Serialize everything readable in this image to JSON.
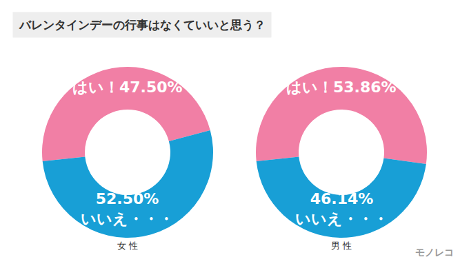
{
  "chart_data": {
    "type": "pie",
    "title": "バレンタインデーの行事はなくていいと思う？",
    "categories": [
      "はい！",
      "いいえ・・・"
    ],
    "colors": [
      "#f17fa5",
      "#189fd6"
    ],
    "series": [
      {
        "name": "女 性",
        "values": [
          47.5,
          52.5
        ],
        "value_labels": [
          "47.50%",
          "52.50%"
        ]
      },
      {
        "name": "男 性",
        "values": [
          53.86,
          46.14
        ],
        "value_labels": [
          "53.86%",
          "46.14%"
        ]
      }
    ],
    "data_labels": true,
    "annotations": [
      "モノレコ"
    ]
  }
}
